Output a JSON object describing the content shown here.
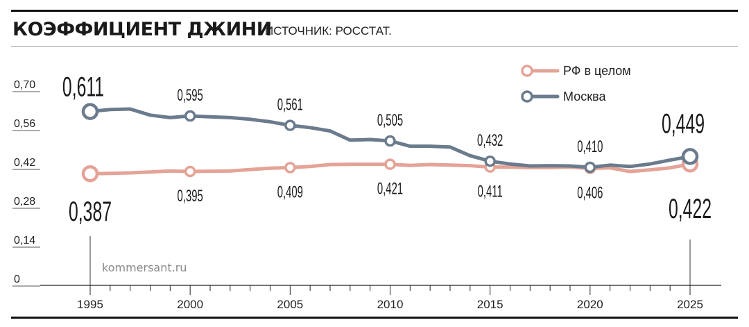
{
  "header": {
    "title": "КОЭФФИЦИЕНТ ДЖИНИ",
    "source": "ИСТОЧНИК: РОССТАТ."
  },
  "watermark": "kommersant.ru",
  "chart_data": {
    "type": "line",
    "ylim": [
      0,
      0.7
    ],
    "xlim": [
      1995,
      2025
    ],
    "y_ticks": [
      0,
      0.14,
      0.28,
      0.42,
      0.56,
      0.7
    ],
    "y_tick_labels": [
      "0",
      "0,14",
      "0,28",
      "0,42",
      "0,56",
      "0,70"
    ],
    "x_ticks": [
      1995,
      2000,
      2005,
      2010,
      2015,
      2020,
      2025
    ],
    "x_tick_labels": [
      "1995",
      "2000",
      "2005",
      "2010",
      "2015",
      "2020",
      "2025"
    ],
    "grid": false,
    "legend_position": "top-right",
    "series": [
      {
        "name": "РФ в целом",
        "color": "#e4a396",
        "x": [
          1995,
          1996,
          1997,
          1998,
          1999,
          2000,
          2001,
          2002,
          2003,
          2004,
          2005,
          2006,
          2007,
          2008,
          2009,
          2010,
          2011,
          2012,
          2013,
          2014,
          2015,
          2016,
          2017,
          2018,
          2019,
          2020,
          2021,
          2022,
          2023,
          2024,
          2025
        ],
        "y": [
          0.387,
          0.388,
          0.39,
          0.393,
          0.397,
          0.395,
          0.396,
          0.397,
          0.402,
          0.407,
          0.409,
          0.413,
          0.42,
          0.421,
          0.421,
          0.421,
          0.417,
          0.42,
          0.418,
          0.416,
          0.411,
          0.411,
          0.409,
          0.409,
          0.411,
          0.406,
          0.408,
          0.395,
          0.401,
          0.408,
          0.422
        ],
        "markers": [
          {
            "x": 1995,
            "y": 0.387,
            "label": "0,387",
            "emphasis": true
          },
          {
            "x": 2000,
            "y": 0.395,
            "label": "0,395"
          },
          {
            "x": 2005,
            "y": 0.409,
            "label": "0,409"
          },
          {
            "x": 2010,
            "y": 0.421,
            "label": "0,421"
          },
          {
            "x": 2015,
            "y": 0.411,
            "label": "0,411"
          },
          {
            "x": 2020,
            "y": 0.406,
            "label": "0,406"
          },
          {
            "x": 2025,
            "y": 0.422,
            "label": "0,422",
            "emphasis": true
          }
        ]
      },
      {
        "name": "Москва",
        "color": "#6b7b8e",
        "x": [
          1995,
          1996,
          1997,
          1998,
          1999,
          2000,
          2001,
          2002,
          2003,
          2004,
          2005,
          2006,
          2007,
          2008,
          2009,
          2010,
          2011,
          2012,
          2013,
          2014,
          2015,
          2016,
          2017,
          2018,
          2019,
          2020,
          2021,
          2022,
          2023,
          2024,
          2025
        ],
        "y": [
          0.611,
          0.618,
          0.62,
          0.598,
          0.589,
          0.595,
          0.592,
          0.589,
          0.583,
          0.574,
          0.561,
          0.553,
          0.541,
          0.508,
          0.51,
          0.505,
          0.486,
          0.486,
          0.483,
          0.452,
          0.432,
          0.422,
          0.415,
          0.416,
          0.415,
          0.41,
          0.418,
          0.413,
          0.422,
          0.436,
          0.449
        ],
        "markers": [
          {
            "x": 1995,
            "y": 0.611,
            "label": "0,611",
            "emphasis": true
          },
          {
            "x": 2000,
            "y": 0.595,
            "label": "0,595"
          },
          {
            "x": 2005,
            "y": 0.561,
            "label": "0,561"
          },
          {
            "x": 2010,
            "y": 0.505,
            "label": "0,505"
          },
          {
            "x": 2015,
            "y": 0.432,
            "label": "0,432"
          },
          {
            "x": 2020,
            "y": 0.41,
            "label": "0,410"
          },
          {
            "x": 2025,
            "y": 0.449,
            "label": "0,449",
            "emphasis": true
          }
        ]
      }
    ]
  }
}
